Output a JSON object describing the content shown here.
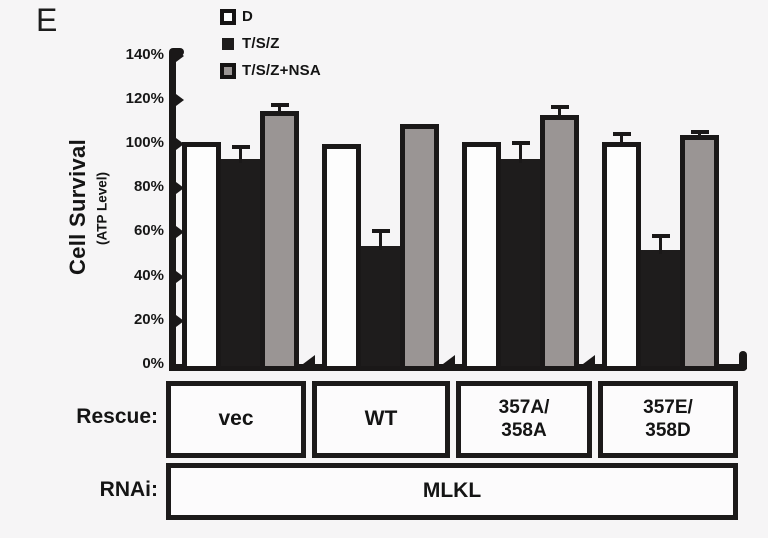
{
  "panel_label": "E",
  "colors": {
    "background": "#f6f5f6",
    "bar_open_fill": "#fdfdfd",
    "bar_black_fill": "#1e1c1c",
    "bar_gray_fill": "#9a9594",
    "axis_black": "#1a1818"
  },
  "chart_data": {
    "type": "bar",
    "title": "",
    "ylabel": "Cell Survival",
    "ylabel_sub": "(ATP Level)",
    "xlabel": "",
    "ylim": [
      0,
      140
    ],
    "y_tick_labels": [
      "0%",
      "20%",
      "40%",
      "60%",
      "80%",
      "100%",
      "120%",
      "140%"
    ],
    "grid": false,
    "legend_position": "top-left",
    "categories": [
      "vec",
      "WT",
      "357A/358A",
      "357E/358D"
    ],
    "series": [
      {
        "name": "D",
        "style": "open",
        "values": [
          101,
          100,
          101,
          101
        ],
        "errors": [
          null,
          null,
          null,
          4
        ]
      },
      {
        "name": "T/S/Z",
        "style": "black",
        "values": [
          93,
          54,
          93,
          52
        ],
        "errors": [
          6,
          7,
          8,
          7
        ]
      },
      {
        "name": "T/S/Z+NSA",
        "style": "gray",
        "values": [
          115,
          109,
          113,
          104
        ],
        "errors": [
          3,
          null,
          4,
          2
        ]
      }
    ]
  },
  "legend": {
    "items": [
      {
        "label": "D",
        "style": "open"
      },
      {
        "label": "T/S/Z",
        "style": "black"
      },
      {
        "label": "T/S/Z+NSA",
        "style": "gray"
      }
    ]
  },
  "table": {
    "rescue_label": "Rescue:",
    "rescue_cells": [
      {
        "lines": [
          "vec"
        ]
      },
      {
        "lines": [
          "WT"
        ]
      },
      {
        "lines": [
          "357A/",
          "358A"
        ]
      },
      {
        "lines": [
          "357E/",
          "358D"
        ]
      }
    ],
    "rnai_label": "RNAi:",
    "rnai_value": "MLKL"
  }
}
